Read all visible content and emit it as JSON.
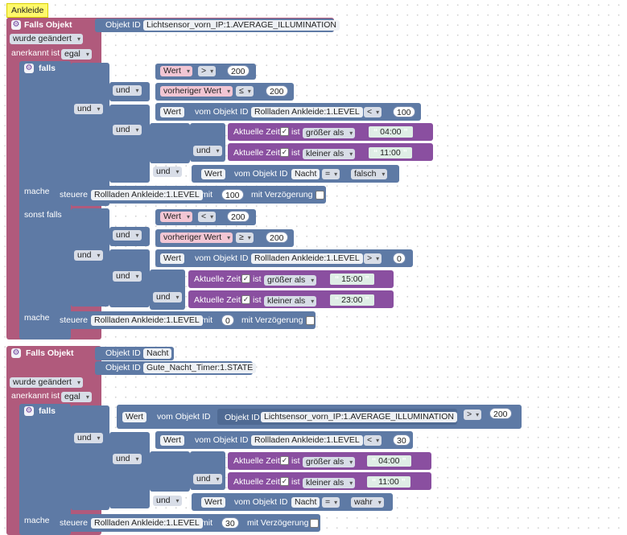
{
  "title": "Ankleide",
  "common": {
    "falls_objekt": "Falls Objekt",
    "objekt_id": "Objekt ID",
    "wurde_geaendert": "wurde geändert",
    "anerkannt_ist": "anerkannt ist",
    "egal": "egal",
    "falls": "falls",
    "und": "und",
    "mache": "mache",
    "sonst_falls": "sonst falls",
    "wert": "Wert",
    "vorheriger_wert": "vorheriger Wert",
    "vom_objekt_id": "vom Objekt ID",
    "aktuelle_zeit": "Aktuelle Zeit",
    "ist": "ist",
    "groesser_als": "größer als",
    "kleiner_als": "kleiner als",
    "steuere": "steuere",
    "mit": "mit",
    "mit_verzoegerung": "mit Verzögerung",
    "op_gt": ">",
    "op_lt": "<",
    "op_le": "≤",
    "op_ge": "≥",
    "op_eq": "=",
    "quote_open": "“",
    "quote_close": "”"
  },
  "block1": {
    "object_id": "Lichtsensor_vorn_IP:1.AVERAGE_ILLUMINATION",
    "cond1": {
      "v1": "200",
      "v2": "200",
      "obj": "Rollladen Ankleide:1.LEVEL",
      "v3": "100",
      "t1": "04:00",
      "t2": "11:00",
      "nacht": "Nacht",
      "falsch": "falsch"
    },
    "action1": {
      "obj": "Rollladen Ankleide:1.LEVEL",
      "value": "100"
    },
    "cond2": {
      "v1": "200",
      "v2": "200",
      "obj": "Rollladen Ankleide:1.LEVEL",
      "v3": "0",
      "t1": "15:00",
      "t2": "23:00"
    },
    "action2": {
      "obj": "Rollladen Ankleide:1.LEVEL",
      "value": "0"
    }
  },
  "block2": {
    "object_id_1": "Nacht",
    "object_id_2": "Gute_Nacht_Timer:1.STATE",
    "cond": {
      "sensor": "Lichtsensor_vorn_IP:1.AVERAGE_ILLUMINATION",
      "v1": "200",
      "obj": "Rollladen Ankleide:1.LEVEL",
      "v2": "30",
      "t1": "04:00",
      "t2": "11:00",
      "nacht": "Nacht",
      "wahr": "wahr"
    },
    "action": {
      "obj": "Rollladen Ankleide:1.LEVEL",
      "value": "30"
    }
  }
}
